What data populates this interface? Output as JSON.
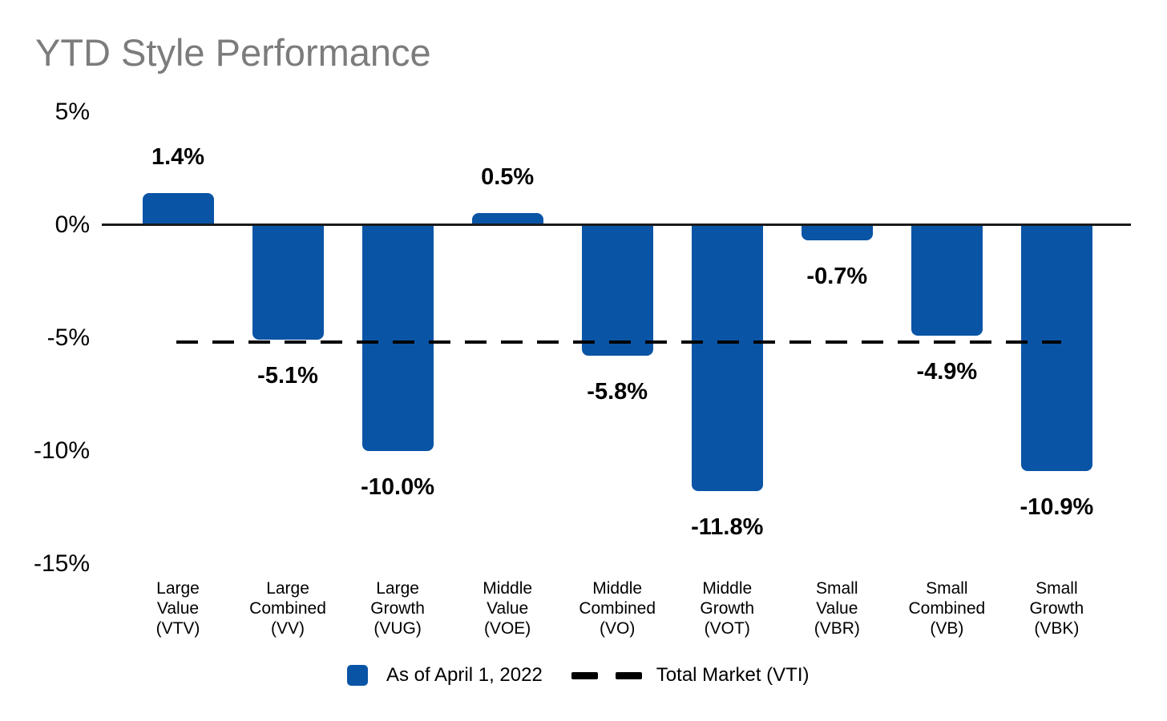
{
  "title": "YTD Style Performance",
  "chart_data": {
    "type": "bar",
    "title": "YTD Style Performance",
    "series": [
      {
        "name": "As of April 1, 2022",
        "values": [
          1.4,
          -5.1,
          -10.0,
          0.5,
          -5.8,
          -11.8,
          -0.7,
          -4.9,
          -10.9
        ]
      }
    ],
    "data_labels": [
      "1.4%",
      "-5.1%",
      "-10.0%",
      "0.5%",
      "-5.8%",
      "-11.8%",
      "-0.7%",
      "-4.9%",
      "-10.9%"
    ],
    "categories": [
      "Large Value (VTV)",
      "Large Combined (VV)",
      "Large Growth (VUG)",
      "Middle Value (VOE)",
      "Middle Combined (VO)",
      "Middle Growth (VOT)",
      "Small Value (VBR)",
      "Small Combined (VB)",
      "Small Growth (VBK)"
    ],
    "category_lines": [
      [
        "Large",
        "Value",
        "(VTV)"
      ],
      [
        "Large",
        "Combined",
        "(VV)"
      ],
      [
        "Large",
        "Growth",
        "(VUG)"
      ],
      [
        "Middle",
        "Value",
        "(VOE)"
      ],
      [
        "Middle",
        "Combined",
        "(VO)"
      ],
      [
        "Middle",
        "Growth",
        "(VOT)"
      ],
      [
        "Small",
        "Value",
        "(VBR)"
      ],
      [
        "Small",
        "Combined",
        "(VB)"
      ],
      [
        "Small",
        "Growth",
        "(VBK)"
      ]
    ],
    "tickers": [
      "VTV",
      "VV",
      "VUG",
      "VOE",
      "VO",
      "VOT",
      "VBR",
      "VB",
      "VBK"
    ],
    "y_ticks": [
      {
        "label": "5%",
        "value": 5
      },
      {
        "label": "0%",
        "value": 0
      },
      {
        "label": "-5%",
        "value": -5
      },
      {
        "label": "-10%",
        "value": -10
      },
      {
        "label": "-15%",
        "value": -15
      }
    ],
    "ylim": [
      -15,
      5
    ],
    "grid": false,
    "reference_line": {
      "name": "Total Market (VTI)",
      "value": -5.2,
      "style": "dashed",
      "color": "#000000"
    },
    "legend_position": "bottom",
    "colors": {
      "bar": "#0a54a6",
      "axis": "#1a1a1a",
      "title_text": "#7c7c7c",
      "label_text": "#000000",
      "reference_line": "#000000"
    }
  },
  "legend": {
    "series_label": "As of April 1, 2022",
    "line_label": "Total Market (VTI)"
  }
}
